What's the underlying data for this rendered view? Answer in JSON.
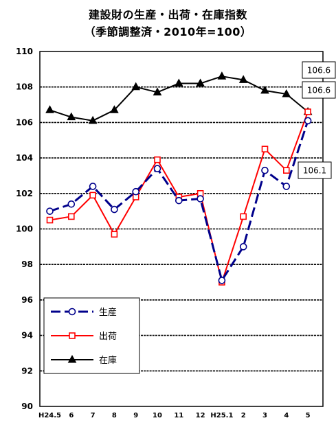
{
  "chart_data": {
    "type": "line",
    "title": "建設財の生産・出荷・在庫指数",
    "subtitle": "（季節調整済・2010年=100）",
    "categories": [
      "H24.5",
      "6",
      "7",
      "8",
      "9",
      "10",
      "11",
      "12",
      "H25.1",
      "2",
      "3",
      "4",
      "5"
    ],
    "ylim": [
      90,
      110
    ],
    "yticks": [
      "90",
      "92",
      "94",
      "96",
      "98",
      "100",
      "102",
      "104",
      "106",
      "108",
      "110"
    ],
    "grid": true,
    "legend_position": "bottom-left",
    "series": [
      {
        "name": "生産",
        "color": "#00008b",
        "marker": "circle",
        "dash": true,
        "values": [
          101.0,
          101.4,
          102.4,
          101.1,
          102.1,
          103.4,
          101.6,
          101.7,
          97.1,
          99.0,
          103.3,
          102.4,
          106.1
        ]
      },
      {
        "name": "出荷",
        "color": "#ff0000",
        "marker": "square",
        "dash": false,
        "values": [
          100.5,
          100.7,
          101.9,
          99.7,
          101.8,
          103.9,
          101.8,
          102.0,
          97.0,
          100.7,
          104.5,
          103.3,
          106.6
        ]
      },
      {
        "name": "在庫",
        "color": "#000000",
        "marker": "triangle",
        "dash": false,
        "values": [
          106.7,
          106.3,
          106.1,
          106.7,
          108.0,
          107.7,
          108.2,
          108.2,
          108.6,
          108.4,
          107.8,
          107.6,
          106.6
        ]
      }
    ],
    "annotations": [
      "106.6",
      "106.6",
      "106.1"
    ]
  }
}
